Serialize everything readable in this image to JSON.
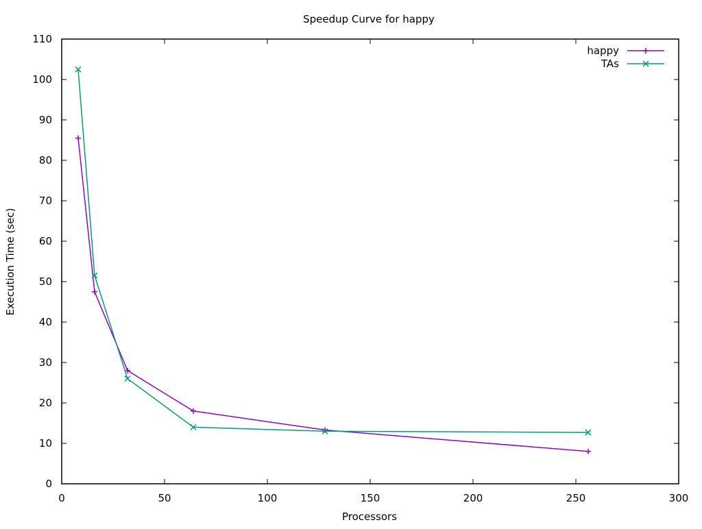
{
  "chart_data": {
    "type": "line",
    "title": "Speedup Curve for happy",
    "xlabel": "Processors",
    "ylabel": "Execution Time (sec)",
    "xlim": [
      0,
      300
    ],
    "ylim": [
      0,
      110
    ],
    "xticks": [
      0,
      50,
      100,
      150,
      200,
      250,
      300
    ],
    "yticks": [
      0,
      10,
      20,
      30,
      40,
      50,
      60,
      70,
      80,
      90,
      100,
      110
    ],
    "grid": false,
    "legend": "top-right",
    "series": [
      {
        "name": "happy",
        "color": "#9400d3",
        "marker": "plus",
        "x": [
          8,
          16,
          32,
          64,
          128,
          256
        ],
        "y": [
          85.5,
          47.5,
          28.0,
          18.0,
          13.3,
          8.0
        ]
      },
      {
        "name": "TAs",
        "color": "#009e73",
        "marker": "cross",
        "x": [
          8,
          16,
          32,
          64,
          128,
          256
        ],
        "y": [
          102.5,
          51.5,
          26.0,
          14.0,
          13.0,
          12.7
        ]
      }
    ]
  }
}
